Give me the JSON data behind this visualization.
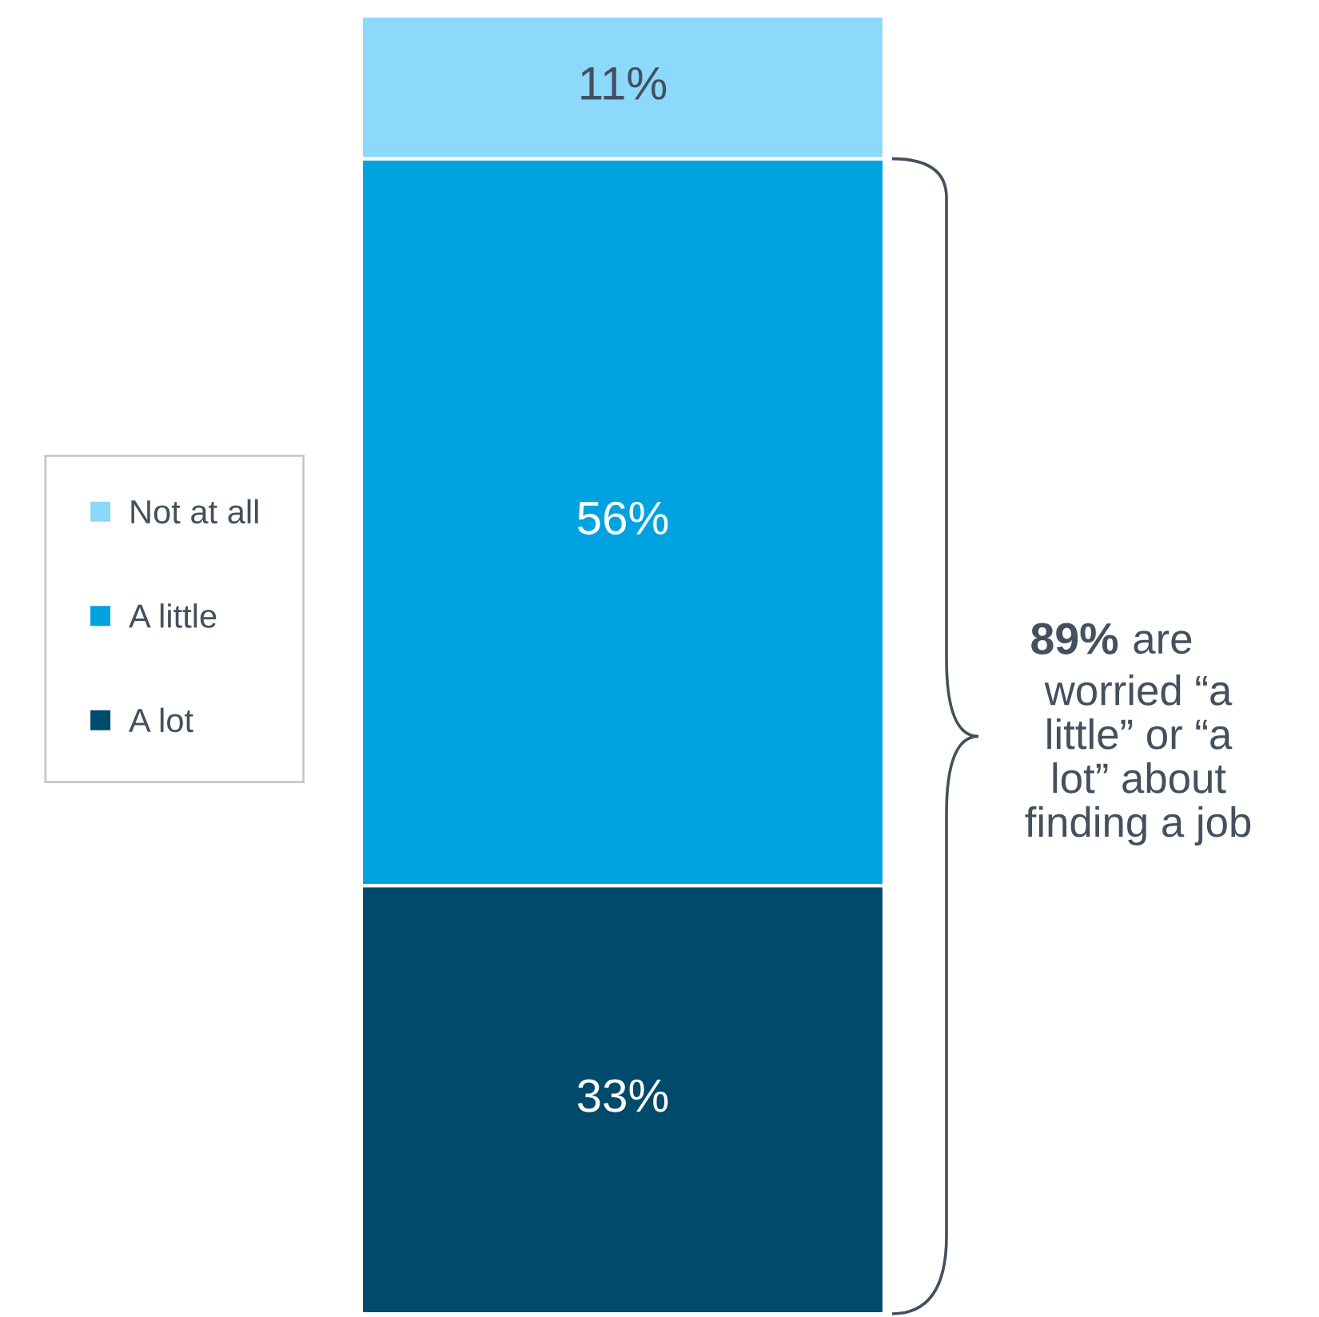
{
  "chart_data": {
    "type": "bar",
    "stacked": true,
    "categories": [
      null
    ],
    "legend": "left",
    "series": [
      {
        "name": "A lot",
        "color": "#004a6b",
        "values": [
          33
        ],
        "value_labels": [
          "33%"
        ]
      },
      {
        "name": "A little",
        "color": "#00a3e0",
        "values": [
          56
        ],
        "value_labels": [
          "56%"
        ]
      },
      {
        "name": "Not at all",
        "color": "#8dd9fc",
        "values": [
          11
        ],
        "value_labels": [
          "11%"
        ]
      }
    ],
    "annotations": [
      "89%",
      "are\nworried “a\nlittle” or “a\nlot” about\nfinding a job"
    ]
  }
}
